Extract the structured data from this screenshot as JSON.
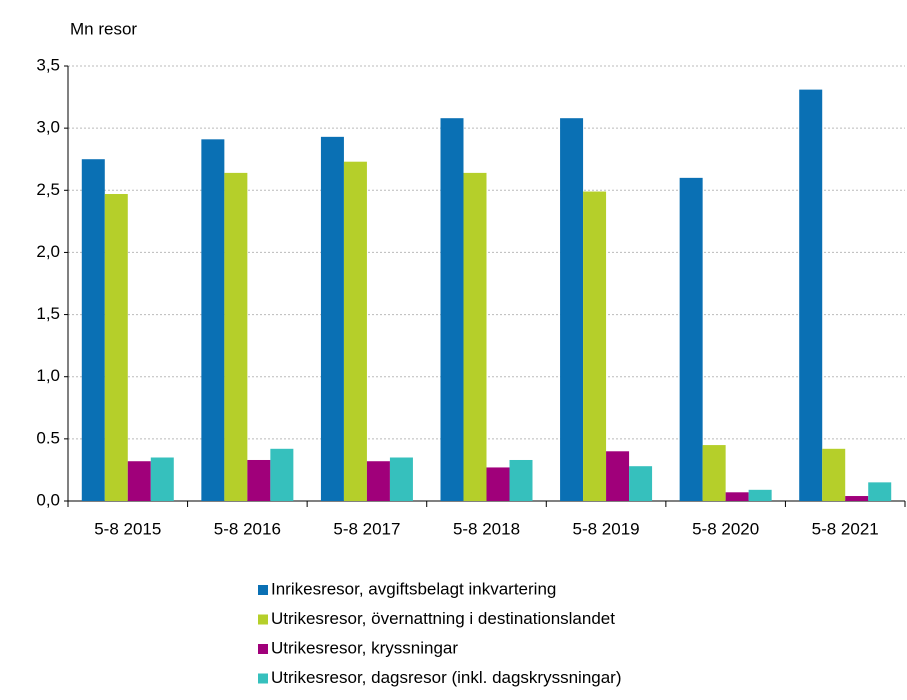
{
  "chart_data": {
    "type": "bar",
    "y_label": "Mn resor",
    "categories": [
      "5-8 2015",
      "5-8 2016",
      "5-8 2017",
      "5-8 2018",
      "5-8 2019",
      "5-8 2020",
      "5-8 2021"
    ],
    "series": [
      {
        "name": "Inrikesresor, avgiftsbelagt inkvartering",
        "color": "#0a70b4",
        "values": [
          2.75,
          2.91,
          2.93,
          3.08,
          3.08,
          2.6,
          3.31
        ]
      },
      {
        "name": "Utrikesresor, övernattning i destinationslandet",
        "color": "#b5cf2a",
        "values": [
          2.47,
          2.64,
          2.73,
          2.64,
          2.49,
          0.45,
          0.42
        ]
      },
      {
        "name": "Utrikesresor, kryssningar",
        "color": "#a0007a",
        "values": [
          0.32,
          0.33,
          0.32,
          0.27,
          0.4,
          0.07,
          0.04
        ]
      },
      {
        "name": "Utrikesresor, dagsresor (inkl. dagskryssningar)",
        "color": "#36c0bd",
        "values": [
          0.35,
          0.42,
          0.35,
          0.33,
          0.28,
          0.09,
          0.15
        ]
      }
    ],
    "ylim": [
      0,
      3.5
    ],
    "yticks": [
      {
        "value": 0,
        "label": "0,0"
      },
      0.5,
      {
        "value": 1,
        "label": "1,0"
      },
      {
        "value": 1.5,
        "label": "1,5"
      },
      {
        "value": 2,
        "label": "2,0"
      },
      {
        "value": 2.5,
        "label": "2,5"
      },
      {
        "value": 3,
        "label": "3,0"
      },
      {
        "value": 3.5,
        "label": "3,5"
      }
    ],
    "grid": true
  }
}
